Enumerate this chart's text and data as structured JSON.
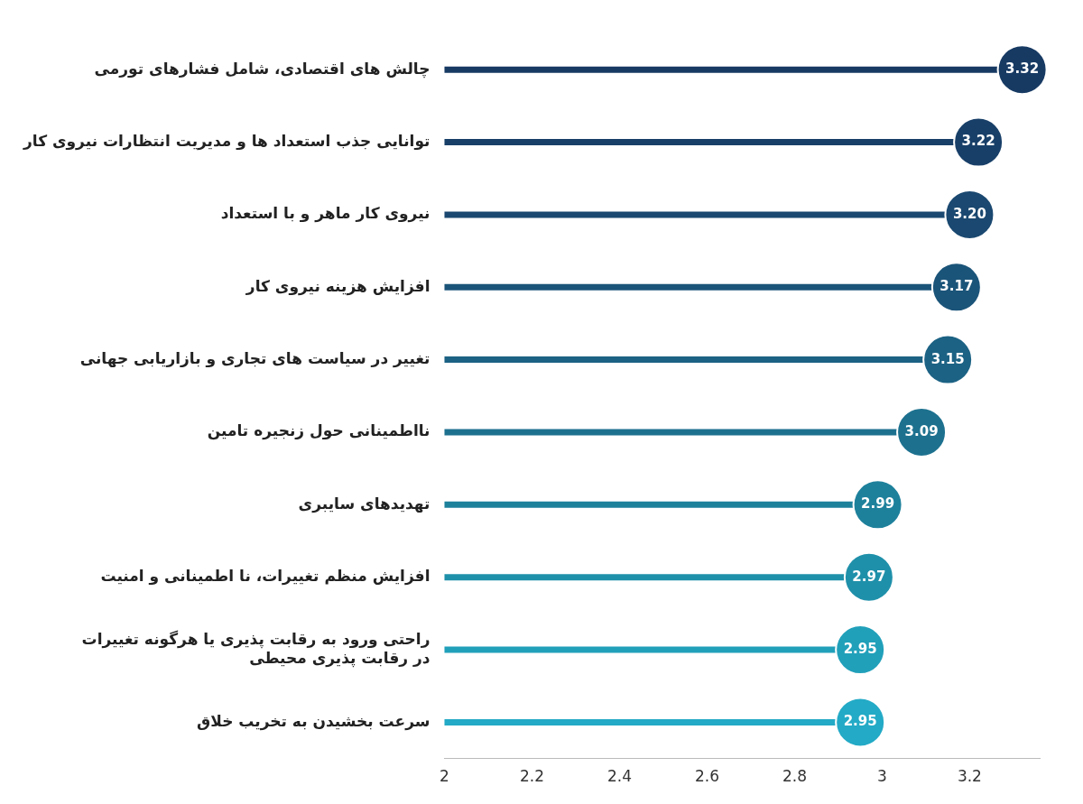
{
  "chart_data": {
    "type": "lollipop",
    "orientation": "horizontal",
    "categories": [
      "چالش های اقتصادی، شامل فشارهای تورمی",
      "توانایی جذب استعداد ها و مدیریت انتظارات نیروی کار",
      "نیروی کار ماهر و با استعداد",
      "افزایش هزینه نیروی کار",
      "تغییر در سیاست های تجاری و بازاریابی جهانی",
      "نااطمینانی حول زنجیره تامین",
      "تهدیدهای سایبری",
      "افزایش منظم تغییرات، نا اطمینانی و امنیت",
      "راحتی ورود به رقابت پذیری یا هرگونه تغییرات\nدر رقابت پذیری محیطی",
      "سرعت بخشیدن به تخریب خلاق"
    ],
    "values": [
      3.32,
      3.22,
      3.2,
      3.17,
      3.15,
      3.09,
      2.99,
      2.97,
      2.95,
      2.95
    ],
    "value_labels": [
      "3.32",
      "3.22",
      "3.20",
      "3.17",
      "3.15",
      "3.09",
      "2.99",
      "2.97",
      "2.95",
      "2.95"
    ],
    "colors": [
      "#173a63",
      "#183f68",
      "#1a4870",
      "#1b5479",
      "#1c6284",
      "#1d718f",
      "#1e819c",
      "#1f90aa",
      "#21a0ba",
      "#23aac6"
    ],
    "xlim": [
      2,
      3.36
    ],
    "xticks": [
      2,
      2.2,
      2.4,
      2.6,
      2.8,
      3,
      3.2
    ],
    "grid": false,
    "legend": false
  }
}
